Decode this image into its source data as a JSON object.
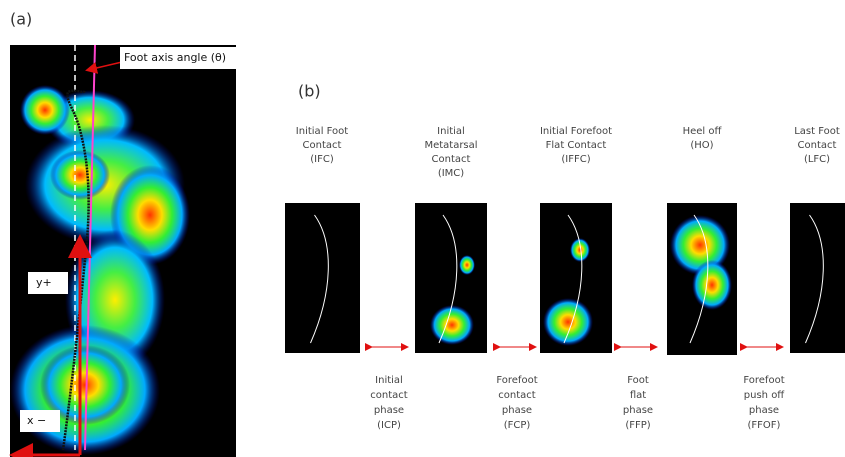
{
  "panel_a": {
    "label": "(a)",
    "annotation": "Foot axis angle (θ)",
    "y_axis": "y+",
    "x_axis": "x −"
  },
  "panel_b": {
    "label": "(b)",
    "stages": [
      {
        "lines": [
          "Initial Foot",
          "Contact",
          "(IFC)"
        ]
      },
      {
        "lines": [
          "Initial",
          "Metatarsal",
          "Contact",
          "(IMC)"
        ]
      },
      {
        "lines": [
          "Initial Forefoot",
          "Flat Contact",
          "(IFFC)"
        ]
      },
      {
        "lines": [
          "Heel off",
          "(HO)"
        ]
      },
      {
        "lines": [
          "Last Foot",
          "Contact",
          "(LFC)"
        ]
      }
    ],
    "phases": [
      {
        "lines": [
          "Initial",
          "contact",
          "phase",
          "(ICP)"
        ]
      },
      {
        "lines": [
          "Forefoot",
          "contact",
          "phase",
          "(FCP)"
        ]
      },
      {
        "lines": [
          "Foot",
          "flat",
          "phase",
          "(FFP)"
        ]
      },
      {
        "lines": [
          "Forefoot",
          "push off",
          "phase",
          "(FFOF)"
        ]
      }
    ]
  }
}
